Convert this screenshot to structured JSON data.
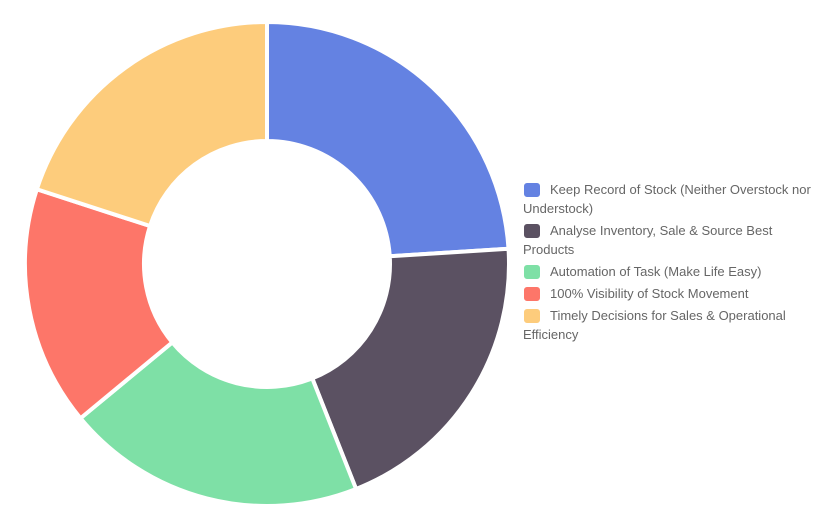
{
  "chart_data": {
    "type": "pie",
    "style": "doughnut",
    "categories": [
      "Keep Record of Stock (Neither Overstock nor Understock)",
      "Analyse Inventory, Sale & Source Best Products",
      "Automation of Task (Make Life Easy)",
      "100% Visibility of Stock Movement",
      "Timely Decisions for Sales & Operational Efficiency"
    ],
    "values": [
      24,
      20,
      20,
      16,
      20
    ],
    "colors": [
      "#6482e2",
      "#5b5162",
      "#7ee0a6",
      "#fd7669",
      "#fdcc7c"
    ],
    "legend_position": "right"
  }
}
